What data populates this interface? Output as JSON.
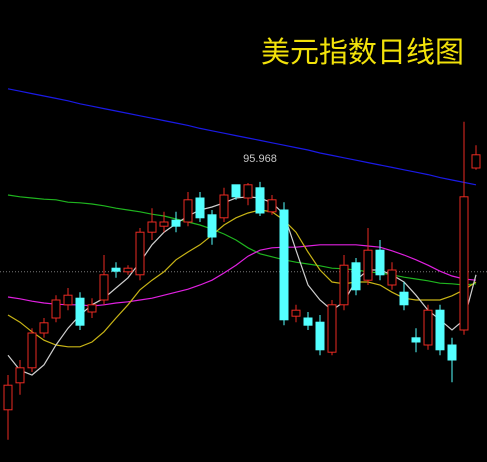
{
  "chart_data": {
    "type": "candlestick",
    "title": "美元指数日线图",
    "ylim": [
      91.3,
      99.0
    ],
    "up_color": "#ea2a22",
    "down_color": "#54ffff",
    "reference_line": 94.47,
    "open": [
      92.17,
      92.62,
      92.87,
      93.45,
      93.7,
      93.92,
      94.03,
      93.8,
      94.0,
      94.53,
      94.47,
      94.42,
      95.13,
      95.23,
      95.33,
      95.3,
      95.7,
      95.42,
      95.37,
      95.92,
      95.7,
      95.87,
      95.47,
      95.5,
      93.73,
      93.7,
      93.63,
      93.13,
      93.92,
      94.62,
      94.33,
      94.83,
      94.25,
      94.13,
      93.37,
      93.25,
      93.83,
      93.25,
      93.5,
      96.2
    ],
    "high": [
      92.75,
      93.0,
      93.53,
      93.7,
      94.08,
      94.2,
      94.13,
      94.03,
      94.75,
      94.63,
      94.58,
      95.2,
      95.53,
      95.47,
      95.47,
      95.8,
      95.8,
      95.5,
      95.87,
      95.9,
      95.95,
      95.968,
      95.75,
      95.63,
      93.92,
      93.8,
      93.75,
      94.0,
      94.75,
      94.7,
      95.2,
      95.0,
      94.63,
      94.3,
      93.53,
      93.92,
      93.92,
      93.37,
      96.97,
      96.58
    ],
    "low": [
      91.67,
      92.42,
      92.8,
      93.37,
      93.63,
      93.83,
      93.5,
      93.7,
      93.92,
      94.37,
      94.42,
      94.33,
      95.0,
      95.13,
      95.13,
      95.23,
      95.3,
      94.92,
      95.3,
      95.67,
      95.58,
      95.4,
      95.42,
      93.58,
      93.63,
      93.5,
      93.08,
      93.08,
      93.83,
      94.08,
      94.25,
      94.33,
      94.17,
      93.83,
      93.13,
      93.17,
      93.08,
      92.63,
      93.42,
      96.17
    ],
    "close": [
      92.58,
      92.87,
      93.45,
      93.62,
      94.0,
      94.08,
      93.58,
      93.92,
      94.42,
      94.48,
      94.53,
      95.13,
      95.3,
      95.3,
      95.23,
      95.67,
      95.37,
      95.05,
      95.75,
      95.72,
      95.92,
      95.45,
      95.67,
      93.67,
      93.83,
      93.58,
      93.17,
      93.92,
      94.58,
      94.17,
      94.83,
      94.42,
      94.5,
      93.92,
      93.3,
      93.83,
      93.17,
      93.0,
      95.72,
      96.42
    ],
    "series": [
      {
        "color": "#1a1ae6",
        "values": [
          97.52,
          97.48,
          97.44,
          97.4,
          97.36,
          97.32,
          97.27,
          97.23,
          97.19,
          97.15,
          97.11,
          97.07,
          97.03,
          96.99,
          96.95,
          96.91,
          96.86,
          96.82,
          96.78,
          96.74,
          96.7,
          96.66,
          96.62,
          96.58,
          96.54,
          96.5,
          96.45,
          96.41,
          96.37,
          96.33,
          96.29,
          96.25,
          96.21,
          96.17,
          96.13,
          96.09,
          96.04,
          96.0,
          95.96,
          95.92
        ]
      },
      {
        "color": "#1fb51f",
        "values": [
          95.75,
          95.72,
          95.7,
          95.68,
          95.67,
          95.63,
          95.62,
          95.6,
          95.57,
          95.53,
          95.5,
          95.47,
          95.43,
          95.4,
          95.35,
          95.3,
          95.25,
          95.18,
          95.1,
          95.0,
          94.87,
          94.77,
          94.72,
          94.67,
          94.63,
          94.6,
          94.57,
          94.53,
          94.52,
          94.5,
          94.47,
          94.45,
          94.42,
          94.38,
          94.35,
          94.32,
          94.28,
          94.27,
          94.25,
          94.27
        ]
      },
      {
        "color": "#e020e0",
        "values": [
          94.05,
          94.02,
          93.98,
          93.95,
          93.93,
          93.92,
          93.92,
          93.9,
          93.92,
          93.95,
          93.97,
          94.0,
          94.03,
          94.08,
          94.13,
          94.18,
          94.25,
          94.33,
          94.45,
          94.58,
          94.73,
          94.83,
          94.87,
          94.88,
          94.88,
          94.9,
          94.92,
          94.92,
          94.92,
          94.92,
          94.9,
          94.88,
          94.82,
          94.75,
          94.67,
          94.58,
          94.48,
          94.4,
          94.35,
          94.33
        ]
      },
      {
        "color": "#c8b416",
        "values": [
          93.75,
          93.63,
          93.47,
          93.33,
          93.25,
          93.22,
          93.22,
          93.3,
          93.47,
          93.7,
          93.92,
          94.17,
          94.33,
          94.47,
          94.67,
          94.8,
          94.92,
          95.08,
          95.25,
          95.37,
          95.45,
          95.5,
          95.47,
          95.33,
          95.13,
          94.8,
          94.5,
          94.3,
          94.27,
          94.3,
          94.3,
          94.25,
          94.13,
          94.03,
          94.0,
          94.0,
          94.0,
          94.07,
          94.17,
          94.3
        ]
      },
      {
        "color": "#cfcfcf",
        "values": [
          93.08,
          92.83,
          92.75,
          92.92,
          93.25,
          93.53,
          93.75,
          93.92,
          94.03,
          94.2,
          94.37,
          94.63,
          94.92,
          95.13,
          95.27,
          95.4,
          95.5,
          95.55,
          95.62,
          95.7,
          95.72,
          95.7,
          95.62,
          95.43,
          94.83,
          94.25,
          94.0,
          93.83,
          93.97,
          94.33,
          94.5,
          94.5,
          94.42,
          94.3,
          94.08,
          93.83,
          93.67,
          93.5,
          93.67,
          94.42
        ]
      }
    ]
  }
}
